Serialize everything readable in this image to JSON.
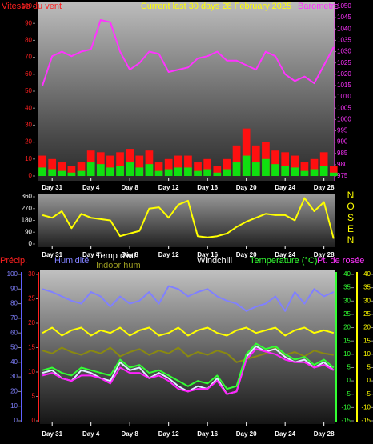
{
  "chart_data": [
    {
      "type": "line",
      "title": "Current last 30 days 28 February 2025",
      "ylabel": "Vitesse du vent",
      "y2label": "Barometre",
      "x": [
        -1,
        0,
        1,
        2,
        3,
        4,
        5,
        6,
        7,
        8,
        9,
        10,
        11,
        12,
        13,
        14,
        15,
        16,
        17,
        18,
        19,
        20,
        21,
        22,
        23,
        24,
        25,
        26,
        27,
        28,
        29
      ],
      "xlim": [
        -1.5,
        29.1
      ],
      "xticks": [
        {
          "value": 0,
          "label": "Day 31"
        },
        {
          "value": 4,
          "label": "Day 4"
        },
        {
          "value": 8,
          "label": "Day 8"
        },
        {
          "value": 12,
          "label": "Day 12"
        },
        {
          "value": 16,
          "label": "Day 16"
        },
        {
          "value": 20,
          "label": "Day 20"
        },
        {
          "value": 24,
          "label": "Day 24"
        },
        {
          "value": 28,
          "label": "Day 28"
        }
      ],
      "ylim": [
        0,
        100
      ],
      "yticks": [
        0,
        10,
        20,
        30,
        40,
        50,
        60,
        70,
        80,
        90,
        100
      ],
      "y2lim": [
        975,
        1050
      ],
      "y2ticks": [
        975,
        980,
        985,
        990,
        995,
        1000,
        1005,
        1010,
        1015,
        1020,
        1025,
        1030,
        1035,
        1040,
        1045,
        1050
      ],
      "series": [
        {
          "style": "bar",
          "color": "#ff1010",
          "values": [
            12,
            10,
            8,
            6,
            8,
            15,
            14,
            12,
            14,
            16,
            12,
            15,
            8,
            10,
            12,
            12,
            8,
            10,
            6,
            10,
            18,
            28,
            18,
            20,
            15,
            14,
            12,
            8,
            10,
            14,
            6
          ]
        },
        {
          "style": "bar",
          "color": "#10e010",
          "values": [
            5,
            4,
            3,
            2,
            3,
            8,
            7,
            5,
            6,
            8,
            5,
            7,
            3,
            4,
            5,
            5,
            3,
            4,
            2,
            4,
            8,
            12,
            8,
            10,
            7,
            6,
            5,
            3,
            4,
            6,
            2
          ]
        },
        {
          "style": "line",
          "axis": "y2",
          "color": "#ff33ff",
          "values": [
            1015,
            1028,
            1030,
            1028,
            1030,
            1031,
            1044,
            1043,
            1030,
            1022,
            1025,
            1030,
            1029,
            1021,
            1022,
            1023,
            1027,
            1028,
            1030,
            1026,
            1026,
            1024,
            1022,
            1030,
            1028,
            1020,
            1017,
            1019,
            1016,
            1024,
            1032
          ]
        }
      ]
    },
    {
      "type": "line",
      "x": [
        -1,
        0,
        1,
        2,
        3,
        4,
        5,
        6,
        7,
        8,
        9,
        10,
        11,
        12,
        13,
        14,
        15,
        16,
        17,
        18,
        19,
        20,
        21,
        22,
        23,
        24,
        25,
        26,
        27,
        28,
        29
      ],
      "xlim": [
        -1.5,
        29.1
      ],
      "xticks": [
        {
          "value": 0,
          "label": "Day 31"
        },
        {
          "value": 4,
          "label": "Day 4"
        },
        {
          "value": 8,
          "label": "Day 8"
        },
        {
          "value": 12,
          "label": "Day 12"
        },
        {
          "value": 16,
          "label": "Day 16"
        },
        {
          "value": 20,
          "label": "Day 20"
        },
        {
          "value": 24,
          "label": "Day 24"
        },
        {
          "value": 28,
          "label": "Day 28"
        }
      ],
      "ylim": [
        0,
        360
      ],
      "yticks": [
        0,
        90,
        180,
        270,
        360
      ],
      "compass": [
        "N",
        "O",
        "S",
        "E",
        "N"
      ],
      "series": [
        {
          "style": "line",
          "color": "#ffff00",
          "values": [
            220,
            200,
            250,
            120,
            230,
            200,
            190,
            180,
            60,
            80,
            100,
            270,
            280,
            200,
            300,
            330,
            60,
            50,
            60,
            80,
            130,
            170,
            200,
            230,
            220,
            220,
            180,
            350,
            250,
            320,
            40
          ]
        }
      ]
    },
    {
      "type": "line",
      "y3label": "Précip.",
      "x": [
        -1,
        0,
        1,
        2,
        3,
        4,
        5,
        6,
        7,
        8,
        9,
        10,
        11,
        12,
        13,
        14,
        15,
        16,
        17,
        18,
        19,
        20,
        21,
        22,
        23,
        24,
        25,
        26,
        27,
        28,
        29
      ],
      "xlim": [
        -1.5,
        29.1
      ],
      "xticks": [
        {
          "value": 0,
          "label": "Day 31"
        },
        {
          "value": 4,
          "label": "Day 4"
        },
        {
          "value": 8,
          "label": "Day 8"
        },
        {
          "value": 12,
          "label": "Day 12"
        },
        {
          "value": 16,
          "label": "Day 16"
        },
        {
          "value": 20,
          "label": "Day 20"
        },
        {
          "value": 24,
          "label": "Day 24"
        },
        {
          "value": 28,
          "label": "Day 28"
        }
      ],
      "ylim": [
        0,
        100
      ],
      "yticks": [
        0,
        10,
        20,
        30,
        40,
        50,
        60,
        70,
        80,
        90,
        100
      ],
      "y3lim": [
        0,
        30
      ],
      "y3ticks": [
        0,
        5,
        10,
        15,
        20,
        25,
        30
      ],
      "y2lim": [
        -15,
        40
      ],
      "y2ticks": [
        -15,
        -10,
        -5,
        0,
        5,
        10,
        15,
        20,
        25,
        30,
        35,
        40
      ],
      "series": [
        {
          "name": "Humidité",
          "style": "line",
          "color": "#8080ff",
          "values": [
            90,
            88,
            85,
            82,
            80,
            88,
            85,
            78,
            85,
            80,
            82,
            88,
            80,
            92,
            90,
            85,
            88,
            90,
            85,
            82,
            80,
            75,
            78,
            80,
            85,
            75,
            88,
            80,
            90,
            85,
            88
          ]
        },
        {
          "name": "Indoor hum",
          "style": "line",
          "color": "#8a8a10",
          "values": [
            48,
            46,
            50,
            47,
            45,
            48,
            46,
            50,
            44,
            47,
            49,
            45,
            48,
            46,
            50,
            44,
            47,
            45,
            48,
            46,
            40,
            42,
            44,
            46,
            50,
            45,
            47,
            44,
            48,
            46,
            45
          ]
        },
        {
          "name": "Temp d'int.",
          "style": "line",
          "axis": "y2",
          "color": "#ffff00",
          "values": [
            18,
            20,
            17,
            19,
            20,
            17,
            19,
            18,
            20,
            17,
            19,
            20,
            17,
            18,
            20,
            17,
            19,
            20,
            18,
            17,
            19,
            20,
            18,
            19,
            20,
            17,
            19,
            20,
            18,
            19,
            18
          ]
        },
        {
          "name": "Windchill",
          "style": "line",
          "axis": "y2",
          "color": "#ddeeff",
          "values": [
            3,
            4,
            1,
            0,
            4,
            3,
            1,
            0,
            7,
            4,
            5,
            1,
            3,
            1,
            -2,
            -4,
            -2,
            -3,
            1,
            -5,
            -4,
            9,
            13,
            11,
            12,
            9,
            7,
            8,
            5,
            7,
            4
          ]
        },
        {
          "name": "Pt. de rosée",
          "style": "line",
          "axis": "y2",
          "color": "#ff22ff",
          "values": [
            2,
            3,
            1,
            0,
            2,
            2,
            1,
            -1,
            5,
            3,
            3,
            1,
            2,
            0,
            -3,
            -4,
            -3,
            -3,
            0,
            -5,
            -4,
            8,
            12,
            11,
            10,
            8,
            7,
            7,
            5,
            6,
            4
          ]
        },
        {
          "name": "Temperature (°C)",
          "style": "line",
          "axis": "y2",
          "color": "#33ff33",
          "values": [
            4,
            5,
            3,
            2,
            5,
            4,
            3,
            2,
            8,
            5,
            6,
            3,
            4,
            2,
            0,
            -2,
            0,
            -1,
            2,
            -3,
            -2,
            10,
            14,
            12,
            13,
            10,
            8,
            9,
            6,
            8,
            5
          ]
        }
      ]
    }
  ]
}
